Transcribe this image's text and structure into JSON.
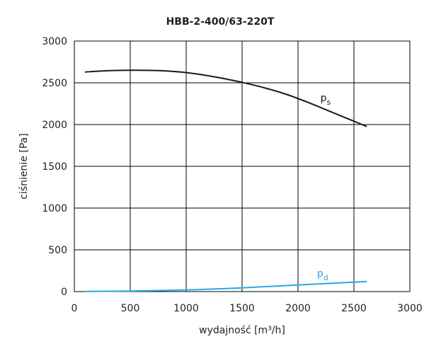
{
  "chart_data": {
    "type": "line",
    "title": "HBB-2-400/63-220T",
    "xlabel": "wydajność [m³/h]",
    "ylabel": "ciśnienie [Pa]",
    "xlim": [
      0,
      3000
    ],
    "ylim": [
      0,
      3000
    ],
    "xticks": [
      "0",
      "500",
      "1000",
      "1500",
      "2000",
      "2500",
      "3000"
    ],
    "yticks": [
      "0",
      "500",
      "1000",
      "1500",
      "2000",
      "2500",
      "3000"
    ],
    "grid": true,
    "series": [
      {
        "id": "ps",
        "label": {
          "main": "p",
          "sub": "s"
        },
        "color": "#1a1a1a",
        "label_at": [
          2200,
          2280
        ],
        "x": [
          100,
          300,
          500,
          700,
          900,
          1100,
          1300,
          1500,
          1700,
          1900,
          2100,
          2300,
          2500,
          2610
        ],
        "y": [
          2630,
          2645,
          2650,
          2648,
          2635,
          2605,
          2560,
          2505,
          2440,
          2360,
          2260,
          2150,
          2040,
          1980
        ]
      },
      {
        "id": "pd",
        "label": {
          "main": "p",
          "sub": "d"
        },
        "color": "#29a8e0",
        "label_at": [
          2170,
          180
        ],
        "x": [
          100,
          500,
          1000,
          1500,
          2000,
          2610
        ],
        "y": [
          2,
          7,
          20,
          45,
          80,
          120
        ]
      }
    ]
  }
}
